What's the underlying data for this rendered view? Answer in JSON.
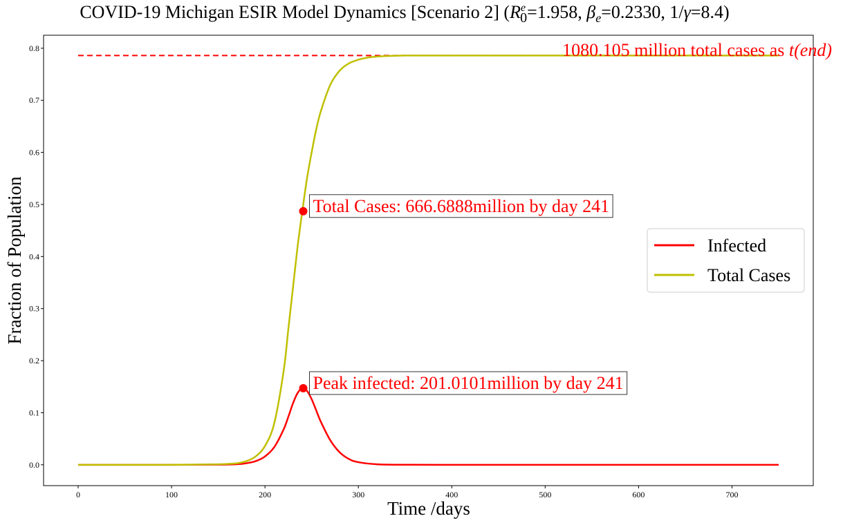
{
  "chart_data": {
    "type": "line",
    "title": {
      "prefix": "COVID-19 Michigan ESIR Model Dynamics [Scenario 2] (",
      "r0_symbol": "R",
      "r0_sup": "e",
      "r0_sub": "0",
      "r0_value": "=1.958, ",
      "beta_symbol": "β",
      "beta_sub": "e",
      "beta_value": "=0.2330, 1/",
      "gamma_symbol": "γ",
      "gamma_value": "=8.4)"
    },
    "xlabel": "Time /days",
    "ylabel": "Fraction of Population",
    "xlim": [
      -37,
      787
    ],
    "ylim": [
      -0.04,
      0.825
    ],
    "xticks": [
      0,
      100,
      200,
      300,
      400,
      500,
      600,
      700
    ],
    "yticks": [
      0.0,
      0.1,
      0.2,
      0.3,
      0.4,
      0.5,
      0.6,
      0.7,
      0.8
    ],
    "grid": false,
    "legend_position": "center-right",
    "series": [
      {
        "name": "Infected",
        "color": "#ff0000",
        "x": [
          0,
          50,
          100,
          150,
          170,
          180,
          190,
          200,
          210,
          220,
          225,
          230,
          235,
          240,
          245,
          250,
          255,
          260,
          270,
          280,
          290,
          300,
          320,
          350,
          400,
          500,
          600,
          700,
          750
        ],
        "y": [
          0.0,
          0.0,
          0.0,
          0.0003,
          0.0012,
          0.003,
          0.007,
          0.016,
          0.034,
          0.068,
          0.092,
          0.118,
          0.138,
          0.147,
          0.142,
          0.126,
          0.104,
          0.082,
          0.047,
          0.024,
          0.011,
          0.005,
          0.001,
          0.0001,
          0.0,
          0.0,
          0.0,
          0.0,
          0.0
        ]
      },
      {
        "name": "Total Cases",
        "color": "#bfbf00",
        "x": [
          0,
          50,
          100,
          150,
          170,
          180,
          190,
          200,
          210,
          220,
          225,
          230,
          235,
          240,
          245,
          250,
          255,
          260,
          270,
          280,
          290,
          300,
          310,
          320,
          330,
          350,
          400,
          500,
          600,
          700,
          750
        ],
        "y": [
          0.0,
          0.0,
          0.0,
          0.001,
          0.003,
          0.007,
          0.016,
          0.036,
          0.08,
          0.18,
          0.26,
          0.34,
          0.42,
          0.487,
          0.55,
          0.6,
          0.645,
          0.68,
          0.73,
          0.757,
          0.771,
          0.778,
          0.782,
          0.784,
          0.785,
          0.786,
          0.786,
          0.786,
          0.786,
          0.786,
          0.786
        ]
      }
    ],
    "reference_line": {
      "y": 0.786,
      "x_start": 0,
      "x_end": 750,
      "color": "#ff0000",
      "style": "dashed"
    },
    "annotations": [
      {
        "name": "total-cases-annotation",
        "point": {
          "x": 241,
          "y": 0.487
        },
        "text": "Total Cases: 666.6888million by day 241",
        "color": "#ff0000",
        "boxed": true
      },
      {
        "name": "peak-infected-annotation",
        "point": {
          "x": 241,
          "y": 0.147
        },
        "text": "Peak infected: 201.0101million by day 241",
        "color": "#ff0000",
        "boxed": true
      }
    ],
    "end_label": {
      "text_main": "1080.105 million total cases as ",
      "text_t": "t",
      "text_paren": "(end)",
      "color": "#ff0000"
    }
  }
}
